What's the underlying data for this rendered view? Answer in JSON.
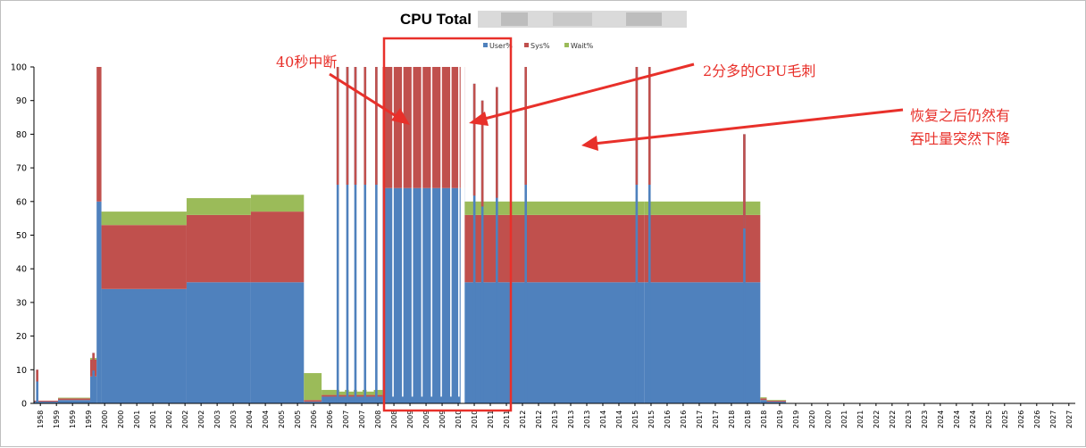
{
  "chart_data": {
    "type": "area",
    "title": "CPU Total",
    "stacked": true,
    "ylim": [
      0,
      100
    ],
    "y_ticks": [
      0,
      10,
      20,
      30,
      40,
      50,
      60,
      70,
      80,
      90,
      100
    ],
    "grid": false,
    "legend_position": "top-center",
    "x_tick_labels": [
      "1958",
      "1959",
      "1959",
      "1959",
      "2000",
      "2000",
      "2001",
      "2001",
      "2002",
      "2002",
      "2002",
      "2003",
      "2003",
      "2004",
      "2004",
      "2005",
      "2005",
      "2006",
      "2006",
      "2007",
      "2007",
      "2008",
      "2008",
      "2009",
      "2009",
      "2009",
      "2010",
      "2010",
      "2011",
      "2011",
      "2012",
      "2012",
      "2013",
      "2013",
      "2013",
      "2014",
      "2014",
      "2015",
      "2015",
      "2016",
      "2016",
      "2017",
      "2017",
      "2018",
      "2018",
      "2018",
      "2019",
      "2019",
      "2020",
      "2020",
      "2021",
      "2021",
      "2022",
      "2022",
      "2023",
      "2023",
      "2024",
      "2024",
      "2024",
      "2025",
      "2025",
      "2026",
      "2026",
      "2027",
      "2027"
    ],
    "series": [
      {
        "name": "User%",
        "color": "#4f81bd"
      },
      {
        "name": "Sys%",
        "color": "#c0504d"
      },
      {
        "name": "Wait%",
        "color": "#9bbb59"
      }
    ],
    "segments": [
      {
        "x0": 0,
        "x1": 1.5,
        "user": 0.5,
        "sys": 0.3,
        "wait": 0
      },
      {
        "x0": 1.5,
        "x1": 3.5,
        "user": 1,
        "sys": 0.5,
        "wait": 0.2
      },
      {
        "x0": 3.5,
        "x1": 3.9,
        "user": 8,
        "sys": 5,
        "wait": 0.5
      },
      {
        "x0": 3.9,
        "x1": 4.2,
        "user": 60,
        "sys": 40,
        "wait": 0
      },
      {
        "x0": 4.2,
        "x1": 9.5,
        "user": 34,
        "sys": 19,
        "wait": 4
      },
      {
        "x0": 9.5,
        "x1": 13.5,
        "user": 36,
        "sys": 20,
        "wait": 5
      },
      {
        "x0": 13.5,
        "x1": 16.8,
        "user": 36,
        "sys": 21,
        "wait": 5
      },
      {
        "x0": 16.8,
        "x1": 17.9,
        "user": 0.5,
        "sys": 0.5,
        "wait": 8
      },
      {
        "x0": 17.9,
        "x1": 21.7,
        "user": 2,
        "sys": 0.5,
        "wait": 1.5
      },
      {
        "x0": 21.7,
        "x1": 26.8,
        "user": 64,
        "sys": 36,
        "wait": 0
      },
      {
        "x0": 26.8,
        "x1": 38.0,
        "user": 36,
        "sys": 20,
        "wait": 4
      },
      {
        "x0": 38.0,
        "x1": 45.2,
        "user": 36,
        "sys": 20,
        "wait": 4
      },
      {
        "x0": 45.2,
        "x1": 45.6,
        "user": 1,
        "sys": 0.5,
        "wait": 0.3
      },
      {
        "x0": 45.6,
        "x1": 46.8,
        "user": 0.5,
        "sys": 0.3,
        "wait": 0.2
      }
    ],
    "spikes": [
      {
        "x": 0.2,
        "total": 10
      },
      {
        "x": 3.7,
        "total": 15
      },
      {
        "x": 18.9,
        "total": 100
      },
      {
        "x": 19.5,
        "total": 100
      },
      {
        "x": 20.0,
        "total": 100
      },
      {
        "x": 20.6,
        "total": 100
      },
      {
        "x": 21.3,
        "total": 100
      },
      {
        "x": 27.4,
        "total": 95
      },
      {
        "x": 27.9,
        "total": 90
      },
      {
        "x": 28.8,
        "total": 94
      },
      {
        "x": 30.6,
        "total": 100
      },
      {
        "x": 37.5,
        "total": 100
      },
      {
        "x": 38.3,
        "total": 100
      },
      {
        "x": 44.2,
        "total": 80
      }
    ],
    "annotations": [
      {
        "text": "40秒中断"
      },
      {
        "text": "2分多的CPU毛刺"
      },
      {
        "text": "恢复之后仍然有"
      },
      {
        "text": "吞吐量突然下降"
      }
    ]
  }
}
